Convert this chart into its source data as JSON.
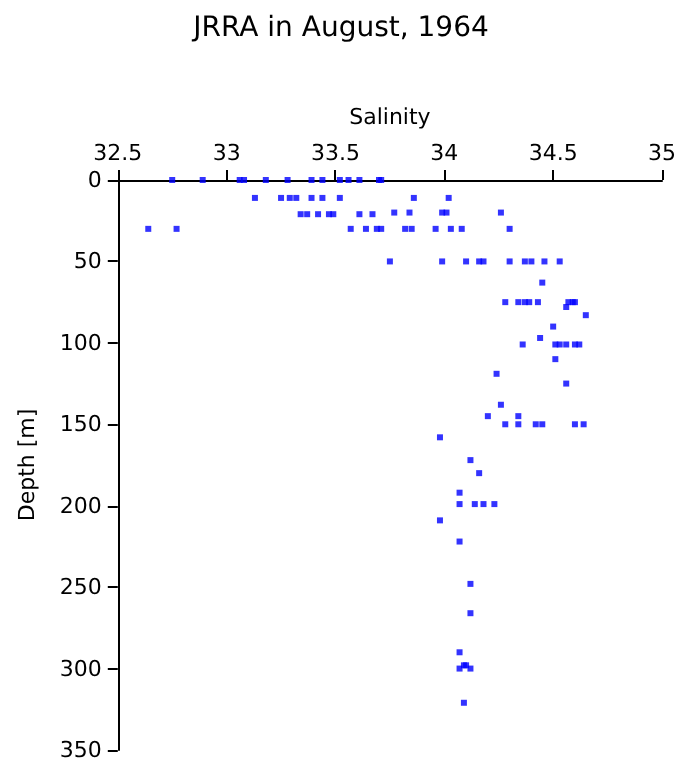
{
  "chart_data": {
    "type": "scatter",
    "title": "JRRA in August, 1964",
    "xlabel": "Salinity",
    "ylabel": "Depth [m]",
    "x": [
      32.75,
      32.89,
      33.06,
      33.08,
      33.18,
      33.28,
      33.39,
      33.44,
      33.52,
      33.56,
      33.61,
      33.7,
      33.71,
      33.13,
      33.25,
      33.29,
      33.32,
      33.39,
      33.44,
      33.52,
      33.86,
      34.02,
      33.34,
      33.37,
      33.42,
      33.47,
      33.49,
      33.61,
      33.67,
      33.77,
      33.84,
      33.99,
      34.01,
      34.26,
      32.64,
      32.77,
      33.57,
      33.64,
      33.69,
      33.71,
      33.82,
      33.85,
      33.96,
      34.03,
      34.08,
      34.3,
      33.75,
      33.99,
      34.1,
      34.16,
      34.18,
      34.3,
      34.37,
      34.4,
      34.46,
      34.53,
      34.45,
      34.28,
      34.34,
      34.37,
      34.39,
      34.43,
      34.57,
      34.59,
      34.6,
      34.56,
      34.65,
      34.5,
      34.44,
      34.36,
      34.51,
      34.53,
      34.56,
      34.6,
      34.62,
      34.51,
      34.24,
      34.56,
      34.26,
      34.2,
      34.34,
      34.28,
      34.34,
      34.42,
      34.45,
      34.6,
      34.64,
      33.98,
      34.12,
      34.16,
      34.07,
      34.07,
      34.14,
      34.18,
      34.23,
      33.98,
      34.07,
      34.12,
      34.12,
      34.07,
      34.09,
      34.1,
      34.07,
      34.12,
      34.09
    ],
    "values": [
      0,
      0,
      0,
      0,
      0,
      0,
      0,
      0,
      0,
      0,
      0,
      0,
      0,
      11,
      11,
      11,
      11,
      11,
      11,
      11,
      11,
      11,
      21,
      21,
      21,
      21,
      21,
      21,
      21,
      20,
      20,
      20,
      20,
      20,
      30,
      30,
      30,
      30,
      30,
      30,
      30,
      30,
      30,
      30,
      30,
      30,
      50,
      50,
      50,
      50,
      50,
      50,
      50,
      50,
      50,
      50,
      63,
      75,
      75,
      75,
      75,
      75,
      75,
      75,
      75,
      78,
      83,
      90,
      97,
      101,
      101,
      101,
      101,
      101,
      101,
      110,
      119,
      125,
      138,
      145,
      145,
      150,
      150,
      150,
      150,
      150,
      150,
      158,
      172,
      180,
      192,
      199,
      199,
      199,
      199,
      209,
      222,
      248,
      266,
      290,
      298,
      298,
      300,
      300,
      321
    ],
    "color": "#0000ff",
    "marker": "square",
    "xlim": [
      32.5,
      35
    ],
    "xticks": [
      32.5,
      33,
      33.5,
      34,
      34.5,
      35
    ],
    "ylim": [
      350,
      0
    ],
    "yticks": [
      0,
      50,
      100,
      150,
      200,
      250,
      300,
      350
    ],
    "grid": false
  }
}
